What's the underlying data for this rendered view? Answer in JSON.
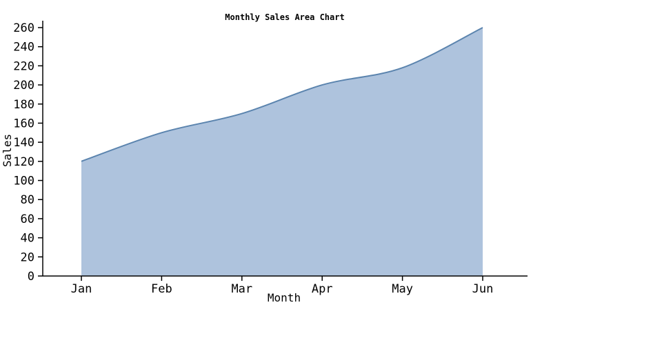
{
  "chart_data": {
    "type": "area",
    "title": "Monthly Sales Area Chart",
    "xlabel": "Month",
    "ylabel": "Sales",
    "categories": [
      "Jan",
      "Feb",
      "Mar",
      "Apr",
      "May",
      "Jun"
    ],
    "series": [
      {
        "name": "Sales",
        "values": [
          120,
          150,
          170,
          200,
          218,
          260
        ]
      }
    ],
    "ylim": [
      0,
      260
    ],
    "ytick_step": 20,
    "grid": false,
    "legend": "none",
    "colors": {
      "line": "#5b84ae",
      "fill": "#aec3dd",
      "axis": "#000000"
    }
  }
}
